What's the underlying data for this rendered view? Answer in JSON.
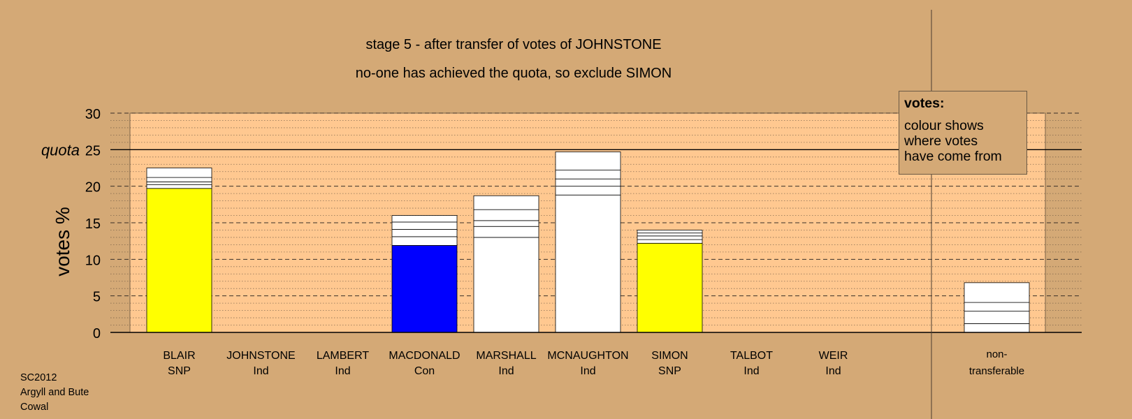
{
  "titles": {
    "line1": "stage 5 - after transfer of votes of JOHNSTONE",
    "line2": "no-one has achieved the quota, so exclude SIMON"
  },
  "legend": {
    "title": "votes:",
    "body": "colour shows\nwhere votes\nhave come from"
  },
  "footer": [
    "SC2012",
    "Argyll and Bute",
    "Cowal"
  ],
  "colors": {
    "background": "#d4a976",
    "plot_area": "#ffc890",
    "SNP": "#ffff00",
    "Con": "#0000ff",
    "Ind": "#ffffff",
    "nontransferable": "#ffffff"
  },
  "chart_data": {
    "type": "bar",
    "stacked": true,
    "ylabel": "votes %",
    "ylim": [
      0,
      30
    ],
    "yticks": [
      0,
      5,
      10,
      15,
      20,
      25,
      30
    ],
    "quota": {
      "value": 25,
      "label": "quota"
    },
    "categories": [
      {
        "name": "BLAIR",
        "party": "SNP",
        "segments": [
          19.7,
          0.5,
          0.4,
          0.6,
          1.3
        ]
      },
      {
        "name": "JOHNSTONE",
        "party": "Ind",
        "segments": []
      },
      {
        "name": "LAMBERT",
        "party": "Ind",
        "segments": []
      },
      {
        "name": "MACDONALD",
        "party": "Con",
        "segments": [
          11.9,
          1.2,
          1.0,
          1.0,
          0.9
        ]
      },
      {
        "name": "MARSHALL",
        "party": "Ind",
        "segments": [
          13.0,
          1.5,
          0.8,
          1.5,
          1.9
        ]
      },
      {
        "name": "MCNAUGHTON",
        "party": "Ind",
        "segments": [
          18.8,
          1.2,
          1.0,
          1.2,
          2.5
        ]
      },
      {
        "name": "SIMON",
        "party": "SNP",
        "segments": [
          12.2,
          0.5,
          0.5,
          0.4,
          0.4
        ]
      },
      {
        "name": "TALBOT",
        "party": "Ind",
        "segments": []
      },
      {
        "name": "WEIR",
        "party": "Ind",
        "segments": []
      }
    ],
    "nontransferable": {
      "name": "non-",
      "party": "transferable",
      "segments": [
        1.2,
        1.7,
        1.2,
        2.7
      ]
    }
  }
}
